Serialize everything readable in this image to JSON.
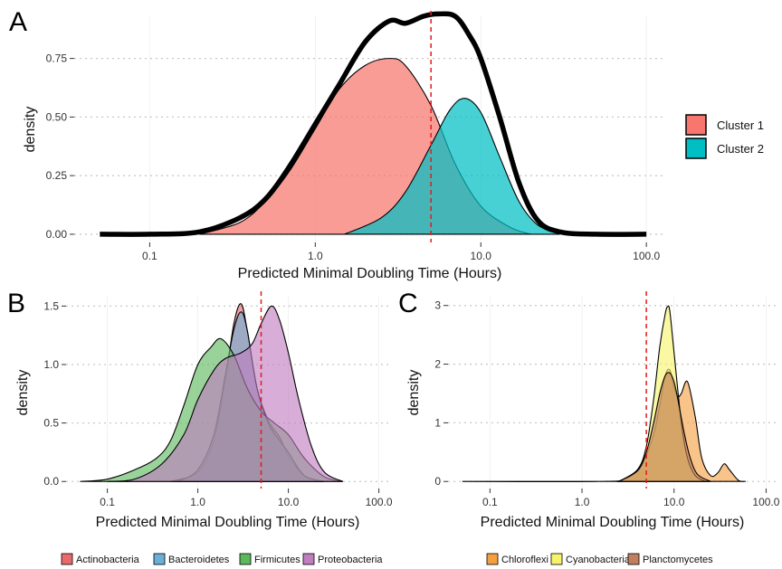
{
  "colors": {
    "cluster1": "#F8766D",
    "cluster2": "#00BFC4",
    "Actinobacteria": "#E86A6A",
    "Bacteroidetes": "#6BAED6",
    "Firmicutes": "#5CB85C",
    "Proteobacteria": "#C07DC0",
    "Chloroflexi": "#F4A040",
    "Cyanobacteria": "#F7F36A",
    "Planctomycetes": "#C08060",
    "cutoff": "#E31A1C",
    "grid": "#C8C8C8"
  },
  "chart_data": [
    {
      "panel": "A",
      "type": "area",
      "xlabel": "Predicted Minimal Doubling Time (Hours)",
      "ylabel": "density",
      "xscale": "log10",
      "xlim": [
        0.035,
        130
      ],
      "ylim": [
        -0.035,
        0.93
      ],
      "xticks": [
        0.1,
        1.0,
        10.0,
        100.0
      ],
      "xtick_labels": [
        "0.1",
        "1.0",
        "10.0",
        "100.0"
      ],
      "yticks": [
        0,
        0.25,
        0.5,
        0.75
      ],
      "ytick_labels": [
        "0.00",
        "0.25",
        "0.50",
        "0.75"
      ],
      "grid": true,
      "legend": "right",
      "cutoff_x": 5,
      "series": [
        {
          "name": "Cluster 1",
          "kind": "fill",
          "color_key": "cluster1",
          "x": [
            0.2,
            0.35,
            0.5,
            0.7,
            1.0,
            1.4,
            2.0,
            2.8,
            3.5,
            5,
            7,
            10,
            15,
            20
          ],
          "y": [
            0.0,
            0.05,
            0.14,
            0.27,
            0.45,
            0.62,
            0.72,
            0.75,
            0.72,
            0.55,
            0.3,
            0.12,
            0.03,
            0.0
          ]
        },
        {
          "name": "Cluster 2",
          "kind": "fill",
          "color_key": "cluster2",
          "x": [
            1.5,
            2.5,
            3.5,
            5,
            6.5,
            8,
            10,
            13,
            17,
            22,
            30
          ],
          "y": [
            0.0,
            0.07,
            0.18,
            0.38,
            0.53,
            0.58,
            0.52,
            0.33,
            0.14,
            0.04,
            0.0
          ]
        },
        {
          "name": "",
          "kind": "line",
          "color_key": "",
          "x": [
            0.05,
            0.1,
            0.2,
            0.35,
            0.5,
            0.7,
            1.0,
            1.4,
            2.0,
            2.8,
            3.5,
            4.5,
            5.5,
            7,
            8.5,
            10,
            13,
            17,
            22,
            30,
            50,
            100
          ],
          "y": [
            0.0,
            0.0,
            0.01,
            0.07,
            0.15,
            0.29,
            0.47,
            0.64,
            0.82,
            0.91,
            0.9,
            0.93,
            0.94,
            0.93,
            0.85,
            0.75,
            0.5,
            0.22,
            0.06,
            0.01,
            0.0,
            0.0
          ]
        }
      ]
    },
    {
      "panel": "B",
      "type": "area",
      "xlabel": "Predicted Minimal Doubling Time (Hours)",
      "ylabel": "density",
      "xscale": "log10",
      "xlim": [
        0.035,
        130
      ],
      "ylim": [
        -0.06,
        1.58
      ],
      "xticks": [
        0.1,
        1.0,
        10.0,
        100.0
      ],
      "xtick_labels": [
        "0.1",
        "1.0",
        "10.0",
        "100.0"
      ],
      "yticks": [
        0,
        0.5,
        1.0,
        1.5
      ],
      "ytick_labels": [
        "0.0",
        "0.5",
        "1.0",
        "1.5"
      ],
      "grid": true,
      "legend": "bottom",
      "cutoff_x": 5,
      "series": [
        {
          "name": "Actinobacteria",
          "kind": "fill",
          "color_key": "Actinobacteria",
          "x": [
            0.5,
            1.0,
            1.5,
            2.0,
            2.5,
            3.0,
            3.5,
            4.5,
            6,
            8,
            10,
            15,
            25
          ],
          "y": [
            0.0,
            0.08,
            0.35,
            0.85,
            1.35,
            1.52,
            1.3,
            0.8,
            0.52,
            0.38,
            0.22,
            0.05,
            0.0
          ]
        },
        {
          "name": "Bacteroidetes",
          "kind": "fill",
          "color_key": "Bacteroidetes",
          "x": [
            0.6,
            1.0,
            1.5,
            2.0,
            2.5,
            3.0,
            3.5,
            4.5,
            6,
            8,
            10,
            15,
            25
          ],
          "y": [
            0.0,
            0.1,
            0.4,
            0.9,
            1.3,
            1.45,
            1.3,
            0.8,
            0.5,
            0.35,
            0.25,
            0.05,
            0.0
          ]
        },
        {
          "name": "Firmicutes",
          "kind": "fill",
          "color_key": "Firmicutes",
          "x": [
            0.05,
            0.1,
            0.2,
            0.35,
            0.5,
            0.7,
            1.0,
            1.4,
            1.8,
            2.5,
            3.5,
            5,
            7,
            10,
            15,
            25,
            40
          ],
          "y": [
            0.0,
            0.02,
            0.1,
            0.2,
            0.35,
            0.65,
            1.0,
            1.15,
            1.22,
            1.08,
            0.8,
            0.6,
            0.5,
            0.4,
            0.2,
            0.04,
            0.0
          ]
        },
        {
          "name": "Proteobacteria",
          "kind": "fill",
          "color_key": "Proteobacteria",
          "x": [
            0.1,
            0.2,
            0.4,
            0.7,
            1.0,
            1.5,
            2.0,
            3.0,
            4.0,
            5.0,
            6.5,
            8.0,
            10,
            13,
            18,
            25,
            40
          ],
          "y": [
            0.0,
            0.02,
            0.15,
            0.4,
            0.7,
            0.95,
            1.05,
            1.1,
            1.18,
            1.35,
            1.5,
            1.38,
            1.1,
            0.7,
            0.3,
            0.08,
            0.0
          ]
        }
      ]
    },
    {
      "panel": "C",
      "type": "area",
      "xlabel": "Predicted Minimal Doubling Time (Hours)",
      "ylabel": "density",
      "xscale": "log10",
      "xlim": [
        0.035,
        130
      ],
      "ylim": [
        -0.12,
        3.15
      ],
      "xticks": [
        0.1,
        1.0,
        10.0,
        100.0
      ],
      "xtick_labels": [
        "0.1",
        "1.0",
        "10.0",
        "100.0"
      ],
      "yticks": [
        0,
        1,
        2,
        3
      ],
      "ytick_labels": [
        "0",
        "1",
        "2",
        "3"
      ],
      "grid": true,
      "legend": "bottom",
      "cutoff_x": 5,
      "series": [
        {
          "name": "Chloroflexi",
          "kind": "fill",
          "color_key": "Chloroflexi",
          "x": [
            0.05,
            1.5,
            3,
            4.5,
            6,
            7,
            8,
            9,
            10,
            11,
            12,
            14,
            17,
            20,
            25,
            30,
            35,
            40,
            50,
            60
          ],
          "y": [
            0.0,
            0.0,
            0.05,
            0.3,
            0.8,
            1.3,
            1.8,
            1.9,
            1.6,
            1.45,
            1.5,
            1.7,
            1.1,
            0.4,
            0.1,
            0.15,
            0.3,
            0.2,
            0.02,
            0.0
          ]
        },
        {
          "name": "Cyanobacteria",
          "kind": "fill",
          "color_key": "Cyanobacteria",
          "x": [
            2.5,
            4,
            5,
            6,
            7,
            8,
            8.5,
            9,
            10,
            12,
            14,
            17,
            22
          ],
          "y": [
            0.0,
            0.2,
            0.6,
            1.4,
            2.3,
            2.85,
            2.98,
            2.9,
            2.2,
            1.0,
            0.4,
            0.1,
            0.0
          ]
        },
        {
          "name": "Planctomycetes",
          "kind": "fill",
          "color_key": "Planctomycetes",
          "x": [
            2.5,
            4,
            5,
            6,
            7,
            8,
            9,
            10,
            11,
            13,
            15,
            18,
            25
          ],
          "y": [
            0.0,
            0.18,
            0.5,
            1.0,
            1.5,
            1.8,
            1.85,
            1.7,
            1.4,
            0.8,
            0.4,
            0.12,
            0.0
          ]
        }
      ]
    }
  ],
  "panels": {
    "A": {
      "label": "A"
    },
    "B": {
      "label": "B"
    },
    "C": {
      "label": "C"
    }
  },
  "legend_A": {
    "items": [
      "Cluster 1",
      "Cluster 2"
    ]
  },
  "legend_B": {
    "items": [
      "Actinobacteria",
      "Bacteroidetes",
      "Firmicutes",
      "Proteobacteria"
    ]
  },
  "legend_C": {
    "items": [
      "Chloroflexi",
      "Cyanobacteria",
      "Planctomycetes"
    ]
  }
}
